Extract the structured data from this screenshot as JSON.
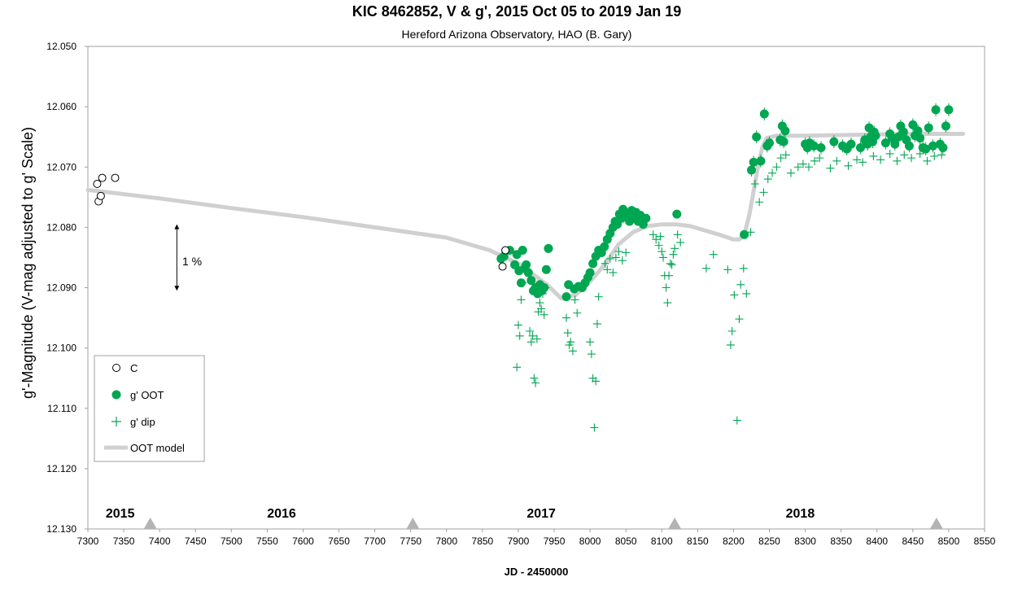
{
  "chart_data": {
    "type": "scatter",
    "title": "KIC 8462852, V & g', 2015 Oct 05 to 2019 Jan 19",
    "subtitle": "Hereford Arizona Observatory, HAO (B. Gary)",
    "xlabel": "JD - 2450000",
    "ylabel": "g'-Magnitude (V-mag adjusted to g' Scale)",
    "xlim": [
      7300,
      8550
    ],
    "ylim": [
      12.05,
      12.13
    ],
    "y_inverted": true,
    "grid": false,
    "x_ticks": [
      "7300",
      "7350",
      "7400",
      "7450",
      "7500",
      "7550",
      "7600",
      "7650",
      "7700",
      "7750",
      "7800",
      "7850",
      "7900",
      "7950",
      "8000",
      "8050",
      "8100",
      "8150",
      "8200",
      "8250",
      "8300",
      "8350",
      "8400",
      "8450",
      "8500",
      "8550"
    ],
    "y_ticks": [
      "12.050",
      "12.060",
      "12.070",
      "12.080",
      "12.090",
      "12.100",
      "12.110",
      "12.120",
      "12.130"
    ],
    "year_labels": [
      {
        "text": "2015",
        "x": 7345
      },
      {
        "text": "2016",
        "x": 7570
      },
      {
        "text": "2017",
        "x": 7932
      },
      {
        "text": "2018",
        "x": 8293
      }
    ],
    "year_markers_x": [
      7387,
      7753,
      8118,
      8483
    ],
    "scale_annotation": {
      "text": "1 %",
      "x": 7424,
      "y_top": 12.0795,
      "y_bottom": 12.0905
    },
    "legend": {
      "position": "bottom-left",
      "entries": [
        {
          "label": "C",
          "symbol": "open-circle"
        },
        {
          "label": "g' OOT",
          "symbol": "filled-circle"
        },
        {
          "label": "g' dip",
          "symbol": "plus"
        },
        {
          "label": "OOT model",
          "symbol": "line"
        }
      ]
    },
    "colors": {
      "oot": "#00a651",
      "dip": "#00a651",
      "c": "#000000",
      "model": "#d0d0d0",
      "marker": "#b3b3b3"
    },
    "series": [
      {
        "name": "C",
        "marker": "open-circle",
        "x": [
          7313,
          7315,
          7318,
          7320,
          7338,
          7878,
          7882
        ],
        "y": [
          12.0728,
          12.0757,
          12.0748,
          12.0718,
          12.0718,
          12.0865,
          12.0838
        ]
      },
      {
        "name": "g' OOT",
        "marker": "filled-circle",
        "x": [
          7876,
          7880,
          7888,
          7895,
          7898,
          7901,
          7904,
          7906,
          7909,
          7911,
          7914,
          7918,
          7921,
          7924,
          7927,
          7930,
          7933,
          7936,
          7939,
          7942,
          7967,
          7970,
          7978,
          7984,
          7989,
          7993,
          7997,
          8000,
          8004,
          8008,
          8012,
          8016,
          8020,
          8024,
          8028,
          8032,
          8035,
          8038,
          8041,
          8044,
          8046,
          8049,
          8052,
          8055,
          8058,
          8061,
          8064,
          8067,
          8070,
          8074,
          8078,
          8121,
          8215,
          8225,
          8228,
          8232,
          8238,
          8243,
          8247,
          8250,
          8265,
          8268,
          8270,
          8272,
          8300,
          8303,
          8306,
          8312,
          8322,
          8340,
          8352,
          8358,
          8364,
          8377,
          8383,
          8387,
          8389,
          8391,
          8394,
          8396,
          8398,
          8412,
          8418,
          8421,
          8425,
          8430,
          8433,
          8437,
          8441,
          8445,
          8450,
          8453,
          8457,
          8460,
          8464,
          8468,
          8472,
          8478,
          8482,
          8488,
          8492,
          8496,
          8500
        ],
        "y": [
          12.0852,
          12.0848,
          12.0838,
          12.0862,
          12.0845,
          12.0872,
          12.0892,
          12.0838,
          12.0868,
          12.0862,
          12.0875,
          12.0888,
          12.0905,
          12.09,
          12.091,
          12.0895,
          12.0905,
          12.09,
          12.087,
          12.0835,
          12.0915,
          12.0895,
          12.0902,
          12.0898,
          12.09,
          12.0892,
          12.0883,
          12.0875,
          12.086,
          12.0848,
          12.0838,
          12.0842,
          12.0832,
          12.082,
          12.081,
          12.08,
          12.079,
          12.0795,
          12.0778,
          12.0785,
          12.077,
          12.0782,
          12.0778,
          12.079,
          12.0772,
          12.0785,
          12.0775,
          12.079,
          12.078,
          12.0795,
          12.0785,
          12.0778,
          12.0812,
          12.0705,
          12.0692,
          12.065,
          12.069,
          12.0612,
          12.0665,
          12.066,
          12.0655,
          12.0632,
          12.0658,
          12.064,
          12.0662,
          12.0668,
          12.066,
          12.0665,
          12.0668,
          12.0658,
          12.0665,
          12.067,
          12.0662,
          12.0668,
          12.0655,
          12.0662,
          12.0635,
          12.065,
          12.0658,
          12.0642,
          12.0648,
          12.066,
          12.0645,
          12.0652,
          12.0662,
          12.065,
          12.0632,
          12.0642,
          12.0655,
          12.0665,
          12.063,
          12.0648,
          12.064,
          12.0652,
          12.0668,
          12.067,
          12.0635,
          12.0665,
          12.0605,
          12.0662,
          12.0668,
          12.0632,
          12.0605
        ]
      },
      {
        "name": "g' dip",
        "marker": "plus",
        "x": [
          7898,
          7900,
          7902,
          7904,
          7906,
          7916,
          7918,
          7920,
          7922,
          7924,
          7926,
          7928,
          7930,
          7932,
          7934,
          7936,
          7938,
          7967,
          7969,
          7971,
          7973,
          7976,
          7979,
          7982,
          7986,
          7994,
          7997,
          8000,
          8002,
          8004,
          8006,
          8008,
          8010,
          8012,
          8021,
          8024,
          8028,
          8032,
          8036,
          8040,
          8045,
          8050,
          8088,
          8092,
          8096,
          8098,
          8100,
          8102,
          8104,
          8106,
          8108,
          8110,
          8112,
          8114,
          8116,
          8118,
          8122,
          8126,
          8162,
          8172,
          8192,
          8196,
          8198,
          8201,
          8205,
          8208,
          8210,
          8214,
          8218,
          8224,
          8230,
          8236,
          8242,
          8248,
          8254,
          8260,
          8266,
          8273,
          8280,
          8290,
          8297,
          8305,
          8313,
          8320,
          8335,
          8344,
          8360,
          8372,
          8380,
          8395,
          8405,
          8418,
          8428,
          8438,
          8448,
          8460,
          8470,
          8480,
          8490
        ],
        "y": [
          12.1032,
          12.0962,
          12.098,
          12.092,
          12.0892,
          12.0972,
          12.099,
          12.098,
          12.105,
          12.1058,
          12.0985,
          12.094,
          12.0925,
          12.0935,
          12.091,
          12.0945,
          12.09,
          12.095,
          12.0975,
          12.0995,
          12.099,
          12.1005,
          12.092,
          12.0942,
          12.09,
          12.089,
          12.088,
          12.099,
          12.101,
          12.105,
          12.1132,
          12.1055,
          12.096,
          12.0915,
          12.086,
          12.087,
          12.0852,
          12.0875,
          12.085,
          12.084,
          12.0855,
          12.0842,
          12.0812,
          12.082,
          12.083,
          12.0815,
          12.084,
          12.085,
          12.088,
          12.09,
          12.0925,
          12.088,
          12.086,
          12.0862,
          12.0845,
          12.0835,
          12.0812,
          12.0825,
          12.0868,
          12.0845,
          12.087,
          12.0995,
          12.0972,
          12.0912,
          12.112,
          12.0952,
          12.0895,
          12.0868,
          12.091,
          12.0808,
          12.0728,
          12.0758,
          12.0742,
          12.072,
          12.071,
          12.07,
          12.0685,
          12.068,
          12.071,
          12.07,
          12.0695,
          12.07,
          12.069,
          12.0685,
          12.0702,
          12.069,
          12.0698,
          12.0688,
          12.0692,
          12.0682,
          12.0688,
          12.0678,
          12.069,
          12.068,
          12.0685,
          12.0678,
          12.069,
          12.0682,
          12.068
        ]
      },
      {
        "name": "OOT model",
        "marker": "line",
        "x": [
          7300,
          7400,
          7500,
          7600,
          7700,
          7800,
          7860,
          7900,
          7940,
          7960,
          7980,
          8000,
          8020,
          8040,
          8060,
          8080,
          8100,
          8120,
          8140,
          8160,
          8180,
          8200,
          8208,
          8215,
          8222,
          8228,
          8234,
          8240,
          8246,
          8260,
          8300,
          8350,
          8400,
          8450,
          8500,
          8520
        ],
        "y": [
          12.0738,
          12.0752,
          12.0768,
          12.0783,
          12.08,
          12.0817,
          12.0838,
          12.086,
          12.0895,
          12.0918,
          12.0912,
          12.089,
          12.0862,
          12.0828,
          12.0808,
          12.0798,
          12.0795,
          12.0795,
          12.0798,
          12.0805,
          12.0812,
          12.082,
          12.082,
          12.0812,
          12.078,
          12.074,
          12.07,
          12.0668,
          12.0652,
          12.0648,
          12.0648,
          12.0647,
          12.0646,
          12.0645,
          12.0645,
          12.0645
        ]
      }
    ]
  }
}
